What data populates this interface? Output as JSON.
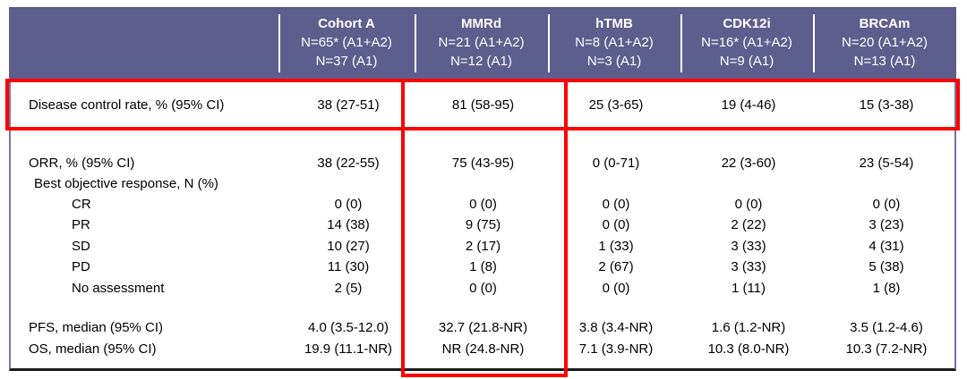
{
  "colors": {
    "header_bg": "#5e5e8e",
    "header_text": "#ffffff",
    "highlight_red": "#fe0000",
    "side_border_purple": "#7575a5",
    "bottom_border_black": "#1a1a1a",
    "body_text": "#000000"
  },
  "table": {
    "header": {
      "corner": "",
      "columns": [
        {
          "title": "Cohort A",
          "n1": "N=65* (A1+A2)",
          "n2": "N=37 (A1)"
        },
        {
          "title": "MMRd",
          "n1": "N=21 (A1+A2)",
          "n2": "N=12 (A1)"
        },
        {
          "title": "hTMB",
          "n1": "N=8 (A1+A2)",
          "n2": "N=3 (A1)"
        },
        {
          "title": "CDK12i",
          "n1": "N=16* (A1+A2)",
          "n2": "N=9 (A1)"
        },
        {
          "title": "BRCAm",
          "n1": "N=20 (A1+A2)",
          "n2": "N=13 (A1)"
        }
      ]
    },
    "rows": [
      {
        "label": "Disease control rate, % (95% CI)",
        "values": [
          "38 (27-51)",
          "81 (58-95)",
          "25 (3-65)",
          "19 (4-46)",
          "15 (3-38)"
        ]
      },
      {
        "label": "ORR, % (95% CI)",
        "values": [
          "38 (22-55)",
          "75 (43-95)",
          "0 (0-71)",
          "22 (3-60)",
          "23 (5-54)"
        ]
      },
      {
        "label": "Best objective response, N (%)",
        "values": [
          "",
          "",
          "",
          "",
          ""
        ]
      },
      {
        "label": "CR",
        "values": [
          "0 (0)",
          "0 (0)",
          "0 (0)",
          "0 (0)",
          "0 (0)"
        ]
      },
      {
        "label": "PR",
        "values": [
          "14 (38)",
          "9 (75)",
          "0 (0)",
          "2 (22)",
          "3 (23)"
        ]
      },
      {
        "label": "SD",
        "values": [
          "10 (27)",
          "2 (17)",
          "1 (33)",
          "3 (33)",
          "4 (31)"
        ]
      },
      {
        "label": "PD",
        "values": [
          "11 (30)",
          "1 (8)",
          "2 (67)",
          "3 (33)",
          "5 (38)"
        ]
      },
      {
        "label": "No assessment",
        "values": [
          "2 (5)",
          "0 (0)",
          "0 (0)",
          "1 (11)",
          "1 (8)"
        ]
      },
      {
        "label": "PFS, median (95% CI)",
        "values": [
          "4.0 (3.5-12.0)",
          "32.7 (21.8-NR)",
          "3.8 (3.4-NR)",
          "1.6 (1.2-NR)",
          "3.5 (1.2-4.6)"
        ]
      },
      {
        "label": "OS, median (95% CI)",
        "values": [
          "19.9 (11.1-NR)",
          "NR (24.8-NR)",
          "7.1 (3.9-NR)",
          "10.3 (8.0-NR)",
          "10.3 (7.2-NR)"
        ]
      }
    ]
  }
}
